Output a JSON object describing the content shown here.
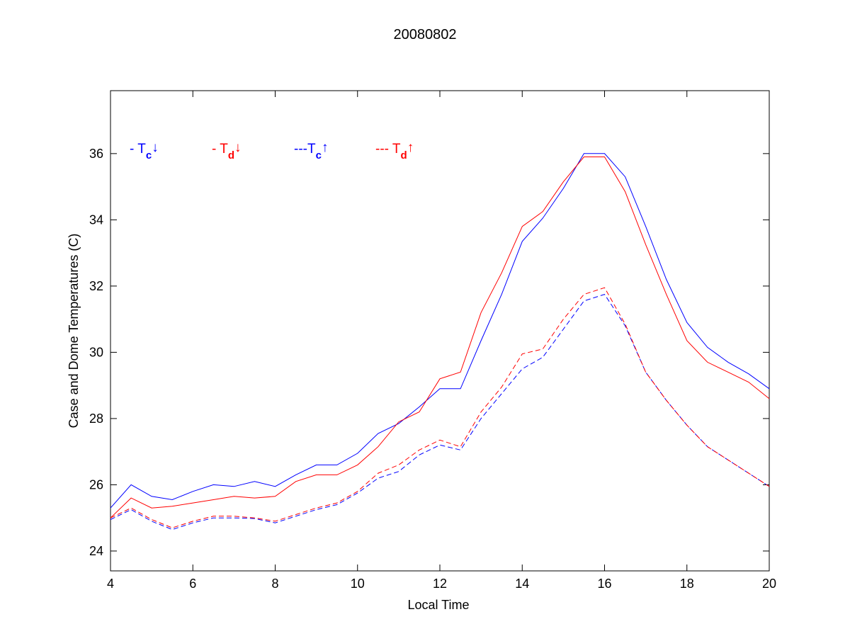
{
  "chart_data": {
    "type": "line",
    "title": "20080802",
    "xlabel": "Local Time",
    "ylabel": "Case and Dome Temperatures (C)",
    "xlim": [
      4,
      20
    ],
    "ylim": [
      23.4,
      37.9
    ],
    "xticks": [
      4,
      6,
      8,
      10,
      12,
      14,
      16,
      18,
      20
    ],
    "yticks": [
      24,
      26,
      28,
      30,
      32,
      34,
      36
    ],
    "grid": false,
    "legend": [
      {
        "prefix": "- ",
        "sym": "T",
        "sub": "c",
        "arrow": "↓",
        "color": "#0000ff"
      },
      {
        "prefix": "- ",
        "sym": "T",
        "sub": "d",
        "arrow": "↓",
        "color": "#ff0000"
      },
      {
        "prefix": "---",
        "sym": "T",
        "sub": "c",
        "arrow": "↑",
        "color": "#0000ff"
      },
      {
        "prefix": "--- ",
        "sym": "T",
        "sub": "d",
        "arrow": "↑",
        "color": "#ff0000"
      }
    ],
    "legend_placement": "top-left",
    "x": [
      4,
      4.5,
      5,
      5.5,
      6,
      6.5,
      7,
      7.5,
      8,
      8.5,
      9,
      9.5,
      10,
      10.5,
      11,
      11.5,
      12,
      12.5,
      13,
      13.5,
      14,
      14.5,
      15,
      15.5,
      16,
      16.5,
      17,
      17.5,
      18,
      18.5,
      19,
      19.5,
      20
    ],
    "series": [
      {
        "name": "Tc down",
        "color": "#0000ff",
        "dash": false,
        "values": [
          25.3,
          26.0,
          25.65,
          25.55,
          25.8,
          26.0,
          25.95,
          26.1,
          25.95,
          26.3,
          26.6,
          26.6,
          26.95,
          27.55,
          27.85,
          28.35,
          28.9,
          28.9,
          30.35,
          31.75,
          33.35,
          34.05,
          34.95,
          36.0,
          36.0,
          35.3,
          33.8,
          32.2,
          30.9,
          30.15,
          29.7,
          29.35,
          28.9
        ]
      },
      {
        "name": "Td down",
        "color": "#ff0000",
        "dash": false,
        "values": [
          25.0,
          25.6,
          25.3,
          25.35,
          25.45,
          25.55,
          25.65,
          25.6,
          25.65,
          26.1,
          26.3,
          26.3,
          26.6,
          27.15,
          27.9,
          28.2,
          29.2,
          29.4,
          31.2,
          32.4,
          33.8,
          34.25,
          35.15,
          35.9,
          35.9,
          34.85,
          33.25,
          31.75,
          30.35,
          29.7,
          29.4,
          29.1,
          28.6
        ]
      },
      {
        "name": "Tc up",
        "color": "#0000ff",
        "dash": true,
        "values": [
          24.95,
          25.25,
          24.9,
          24.65,
          24.85,
          25.0,
          25.0,
          24.98,
          24.85,
          25.05,
          25.25,
          25.4,
          25.75,
          26.2,
          26.4,
          26.9,
          27.2,
          27.05,
          28.0,
          28.75,
          29.5,
          29.85,
          30.7,
          31.55,
          31.75,
          30.8,
          29.4,
          28.55,
          27.8,
          27.15,
          26.75,
          26.35,
          25.95
        ]
      },
      {
        "name": "Td up",
        "color": "#ff0000",
        "dash": true,
        "values": [
          25.0,
          25.3,
          24.95,
          24.7,
          24.9,
          25.05,
          25.05,
          25.0,
          24.9,
          25.1,
          25.3,
          25.45,
          25.8,
          26.35,
          26.6,
          27.05,
          27.35,
          27.15,
          28.2,
          28.95,
          29.95,
          30.1,
          31.0,
          31.75,
          31.95,
          30.85,
          29.4,
          28.55,
          27.8,
          27.15,
          26.75,
          26.35,
          25.95
        ]
      }
    ]
  }
}
